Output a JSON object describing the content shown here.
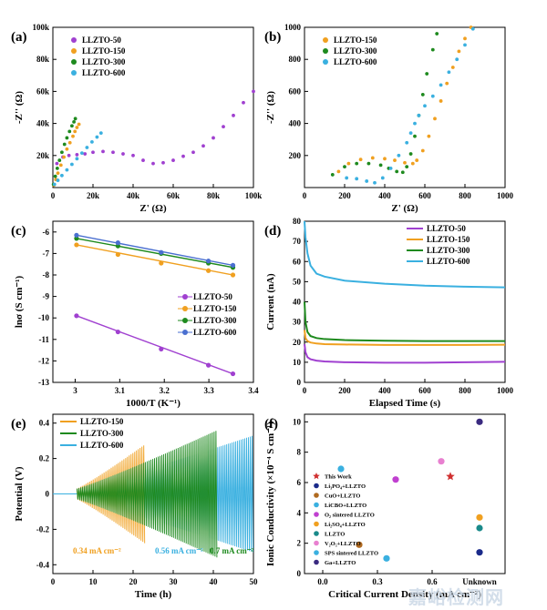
{
  "watermark": "嘉峪检测网",
  "colors": {
    "purple": "#a040d0",
    "orange": "#f0a020",
    "green": "#1e8a1e",
    "blue": "#3ab0e0",
    "red": "#d03030"
  },
  "chart_data": [
    {
      "panel": "(a)",
      "type": "scatter",
      "xlabel": "Z' (Ω)",
      "ylabel": "-Z'' (Ω)",
      "xlim": [
        0,
        100000
      ],
      "ylim": [
        0,
        100000
      ],
      "xticks": [
        0,
        20000,
        40000,
        60000,
        80000,
        100000
      ],
      "xtick_labels": [
        "0",
        "20k",
        "40k",
        "60k",
        "80k",
        "100k"
      ],
      "yticks": [
        0,
        20000,
        40000,
        60000,
        80000,
        100000
      ],
      "ytick_labels": [
        "",
        "20k",
        "40k",
        "60k",
        "80k",
        "100k"
      ],
      "legend": "top-left",
      "series": [
        {
          "name": "LLZTO-50",
          "color": "#a040d0",
          "x": [
            2000,
            5000,
            8000,
            12000,
            16000,
            20000,
            25000,
            30000,
            35000,
            40000,
            45000,
            50000,
            55000,
            60000,
            65000,
            70000,
            75000,
            80000,
            85000,
            90000,
            95000,
            100000
          ],
          "y": [
            15000,
            19000,
            20000,
            20500,
            21000,
            22000,
            22500,
            22000,
            21000,
            20000,
            17000,
            15000,
            15500,
            17000,
            19500,
            22000,
            26000,
            31000,
            38000,
            45000,
            53000,
            60000
          ]
        },
        {
          "name": "LLZTO-150",
          "color": "#f0a020",
          "x": [
            500,
            1500,
            2500,
            4000,
            5500,
            7000,
            8500,
            10000,
            11000,
            12000,
            13000
          ],
          "y": [
            1500,
            5000,
            9000,
            14000,
            19000,
            24000,
            28000,
            32000,
            35000,
            37500,
            39500
          ]
        },
        {
          "name": "LLZTO-300",
          "color": "#1e8a1e",
          "x": [
            300,
            1200,
            2200,
            3300,
            4500,
            5800,
            7000,
            8300,
            9500,
            10500,
            11200
          ],
          "y": [
            2000,
            7000,
            12000,
            17000,
            22000,
            27000,
            31000,
            35000,
            38500,
            41000,
            43000
          ]
        },
        {
          "name": "LLZTO-600",
          "color": "#3ab0e0",
          "x": [
            800,
            2500,
            4500,
            7000,
            9500,
            12000,
            14500,
            17000,
            19500,
            22000,
            24000
          ],
          "y": [
            2000,
            4500,
            7500,
            11000,
            14500,
            18000,
            21500,
            25000,
            28500,
            31500,
            34000
          ]
        }
      ]
    },
    {
      "panel": "(b)",
      "type": "scatter",
      "xlabel": "Z' (Ω)",
      "ylabel": "-Z'' (Ω)",
      "xlim": [
        0,
        1000
      ],
      "ylim": [
        0,
        1000
      ],
      "xticks": [
        0,
        200,
        400,
        600,
        800,
        1000
      ],
      "yticks": [
        200,
        400,
        600,
        800,
        1000
      ],
      "legend": "top-left",
      "series": [
        {
          "name": "LLZTO-150",
          "color": "#f0a020",
          "x": [
            170,
            220,
            280,
            340,
            400,
            450,
            500,
            540,
            560,
            590,
            620,
            650,
            680,
            710,
            740,
            770,
            800,
            830
          ],
          "y": [
            100,
            150,
            175,
            185,
            180,
            170,
            155,
            150,
            170,
            230,
            320,
            430,
            540,
            650,
            750,
            850,
            930,
            1000
          ]
        },
        {
          "name": "LLZTO-300",
          "color": "#1e8a1e",
          "x": [
            140,
            200,
            260,
            320,
            380,
            420,
            460,
            490,
            510,
            530,
            550,
            570,
            590,
            610,
            640,
            660
          ],
          "y": [
            80,
            130,
            150,
            150,
            140,
            120,
            100,
            95,
            130,
            210,
            320,
            450,
            580,
            710,
            860,
            960
          ]
        },
        {
          "name": "LLZTO-600",
          "color": "#3ab0e0",
          "x": [
            210,
            260,
            310,
            350,
            390,
            430,
            470,
            510,
            530,
            550,
            570,
            600,
            640,
            680,
            720,
            760,
            800,
            840
          ],
          "y": [
            60,
            55,
            40,
            30,
            60,
            120,
            200,
            280,
            340,
            400,
            450,
            510,
            570,
            640,
            720,
            800,
            890,
            990
          ]
        }
      ]
    },
    {
      "panel": "(c)",
      "type": "scatter",
      "xlabel": "1000/T (K⁻¹)",
      "ylabel": "lnσ (S cm⁻¹)",
      "xlim": [
        2.95,
        3.4
      ],
      "ylim": [
        -13,
        -5.5
      ],
      "xticks": [
        3.0,
        3.1,
        3.2,
        3.3,
        3.4
      ],
      "yticks": [
        -13,
        -12,
        -11,
        -10,
        -9,
        -8,
        -7,
        -6
      ],
      "legend": "bottom-right",
      "series": [
        {
          "name": "LLZTO-50",
          "color": "#a040d0",
          "x": [
            3.003,
            3.096,
            3.193,
            3.299,
            3.354
          ],
          "y": [
            -9.9,
            -10.65,
            -11.45,
            -12.2,
            -12.6
          ]
        },
        {
          "name": "LLZTO-150",
          "color": "#f0a020",
          "x": [
            3.003,
            3.096,
            3.193,
            3.299,
            3.354
          ],
          "y": [
            -6.6,
            -7.05,
            -7.45,
            -7.8,
            -8.0
          ]
        },
        {
          "name": "LLZTO-300",
          "color": "#1e8a1e",
          "x": [
            3.003,
            3.096,
            3.193,
            3.299,
            3.354
          ],
          "y": [
            -6.3,
            -6.65,
            -7.0,
            -7.45,
            -7.65
          ]
        },
        {
          "name": "LLZTO-600",
          "color": "#4a6fd0",
          "x": [
            3.003,
            3.096,
            3.193,
            3.299,
            3.354
          ],
          "y": [
            -6.15,
            -6.5,
            -6.95,
            -7.35,
            -7.55
          ]
        }
      ]
    },
    {
      "panel": "(d)",
      "type": "line",
      "xlabel": "Elapsed Time (s)",
      "ylabel": "Current (nA)",
      "xlim": [
        0,
        1000
      ],
      "ylim": [
        0,
        80
      ],
      "xticks": [
        0,
        200,
        400,
        600,
        800,
        1000
      ],
      "yticks": [
        0,
        10,
        20,
        30,
        40,
        50,
        60,
        70,
        80
      ],
      "legend": "top-right",
      "series": [
        {
          "name": "LLZTO-50",
          "color": "#a040d0",
          "x": [
            0,
            5,
            15,
            30,
            60,
            100,
            200,
            400,
            600,
            800,
            1000
          ],
          "y": [
            19,
            15,
            12.5,
            11.5,
            10.8,
            10.4,
            10,
            9.8,
            9.8,
            10,
            10.2
          ]
        },
        {
          "name": "LLZTO-150",
          "color": "#f0a020",
          "x": [
            0,
            5,
            15,
            30,
            60,
            100,
            200,
            400,
            600,
            800,
            1000
          ],
          "y": [
            26,
            22,
            20.5,
            19.8,
            19.3,
            19,
            18.8,
            18.6,
            18.6,
            18.6,
            18.7
          ]
        },
        {
          "name": "LLZTO-300",
          "color": "#1e8a1e",
          "x": [
            0,
            5,
            15,
            30,
            60,
            100,
            200,
            400,
            600,
            800,
            1000
          ],
          "y": [
            40,
            30,
            25,
            23,
            22,
            21.5,
            21,
            20.7,
            20.5,
            20.5,
            20.5
          ]
        },
        {
          "name": "LLZTO-600",
          "color": "#3ab0e0",
          "x": [
            0,
            5,
            15,
            30,
            60,
            100,
            200,
            400,
            600,
            800,
            1000
          ],
          "y": [
            80,
            72,
            64,
            58,
            54,
            52.5,
            50.5,
            49,
            48,
            47.5,
            47.2
          ]
        }
      ]
    },
    {
      "panel": "(e)",
      "type": "line",
      "xlabel": "Time (h)",
      "ylabel": "Potential (V)",
      "xlim": [
        0,
        50
      ],
      "ylim": [
        -0.45,
        0.45
      ],
      "xticks": [
        0,
        10,
        20,
        30,
        40,
        50
      ],
      "yticks": [
        -0.4,
        -0.2,
        0.0,
        0.2,
        0.4
      ],
      "legend": "top-left",
      "series": [
        {
          "name": "LLZTO-150",
          "color": "#f0a020",
          "x": [
            6,
            23
          ],
          "envelope": [
            0.03,
            0.28
          ]
        },
        {
          "name": "LLZTO-300",
          "color": "#1e8a1e",
          "x": [
            6,
            41
          ],
          "envelope": [
            0.03,
            0.36
          ]
        },
        {
          "name": "LLZTO-600",
          "color": "#3ab0e0",
          "x": [
            6,
            50
          ],
          "envelope": [
            0.03,
            0.33
          ]
        }
      ],
      "annotations": [
        {
          "text": "0.34 mA cm⁻²",
          "color": "#f0a020"
        },
        {
          "text": "0.56 mA cm⁻²",
          "color": "#3ab0e0"
        },
        {
          "text": "0.7 mA cm⁻²",
          "color": "#1e8a1e"
        }
      ]
    },
    {
      "panel": "(f)",
      "type": "scatter",
      "xlabel": "Critical Current Density (mA cm⁻²)",
      "ylabel": "Ionic Conductivity (×10⁻⁴ S cm⁻¹)",
      "xlim": [
        -0.1,
        1.0
      ],
      "ylim": [
        0,
        10.5
      ],
      "xticks": [
        0.0,
        0.3,
        0.6
      ],
      "xtick_labels": [
        "0.0",
        "0.3",
        "0.6"
      ],
      "extra_xtick_label": "Unknown",
      "yticks": [
        0,
        2,
        4,
        6,
        8,
        10
      ],
      "legend": "left",
      "series": [
        {
          "name": "This Work",
          "marker": "star",
          "color": "#d03030",
          "x": 0.7,
          "y": 6.4
        },
        {
          "name": "Li₃PO₄+LLZTO",
          "color": "#1a2a8a",
          "x": "Unknown",
          "y": 1.4
        },
        {
          "name": "CuO+LLZTO",
          "color": "#b06a20",
          "x": 0.2,
          "y": 1.9
        },
        {
          "name": "LiCBO+LLZTO",
          "color": "#3ab0e0",
          "x": 0.1,
          "y": 6.9
        },
        {
          "name": "O₂ sintered LLZTO",
          "color": "#c040d0",
          "x": 0.4,
          "y": 6.2
        },
        {
          "name": "Li₂SO₄+LLZTO",
          "color": "#f0a020",
          "x": "Unknown",
          "y": 3.7
        },
        {
          "name": "LLZTO",
          "color": "#1a8a8a",
          "x": "Unknown",
          "y": 3.0
        },
        {
          "name": "V₂O₅+LLZTO",
          "color": "#e880d0",
          "x": 0.65,
          "y": 7.4
        },
        {
          "name": "SPS sintered LLZTO",
          "color": "#3ab0e0",
          "x": 0.35,
          "y": 1.0
        },
        {
          "name": "Ga+LLZTO",
          "color": "#3a2a80",
          "x": "Unknown",
          "y": 10.0
        }
      ]
    }
  ]
}
